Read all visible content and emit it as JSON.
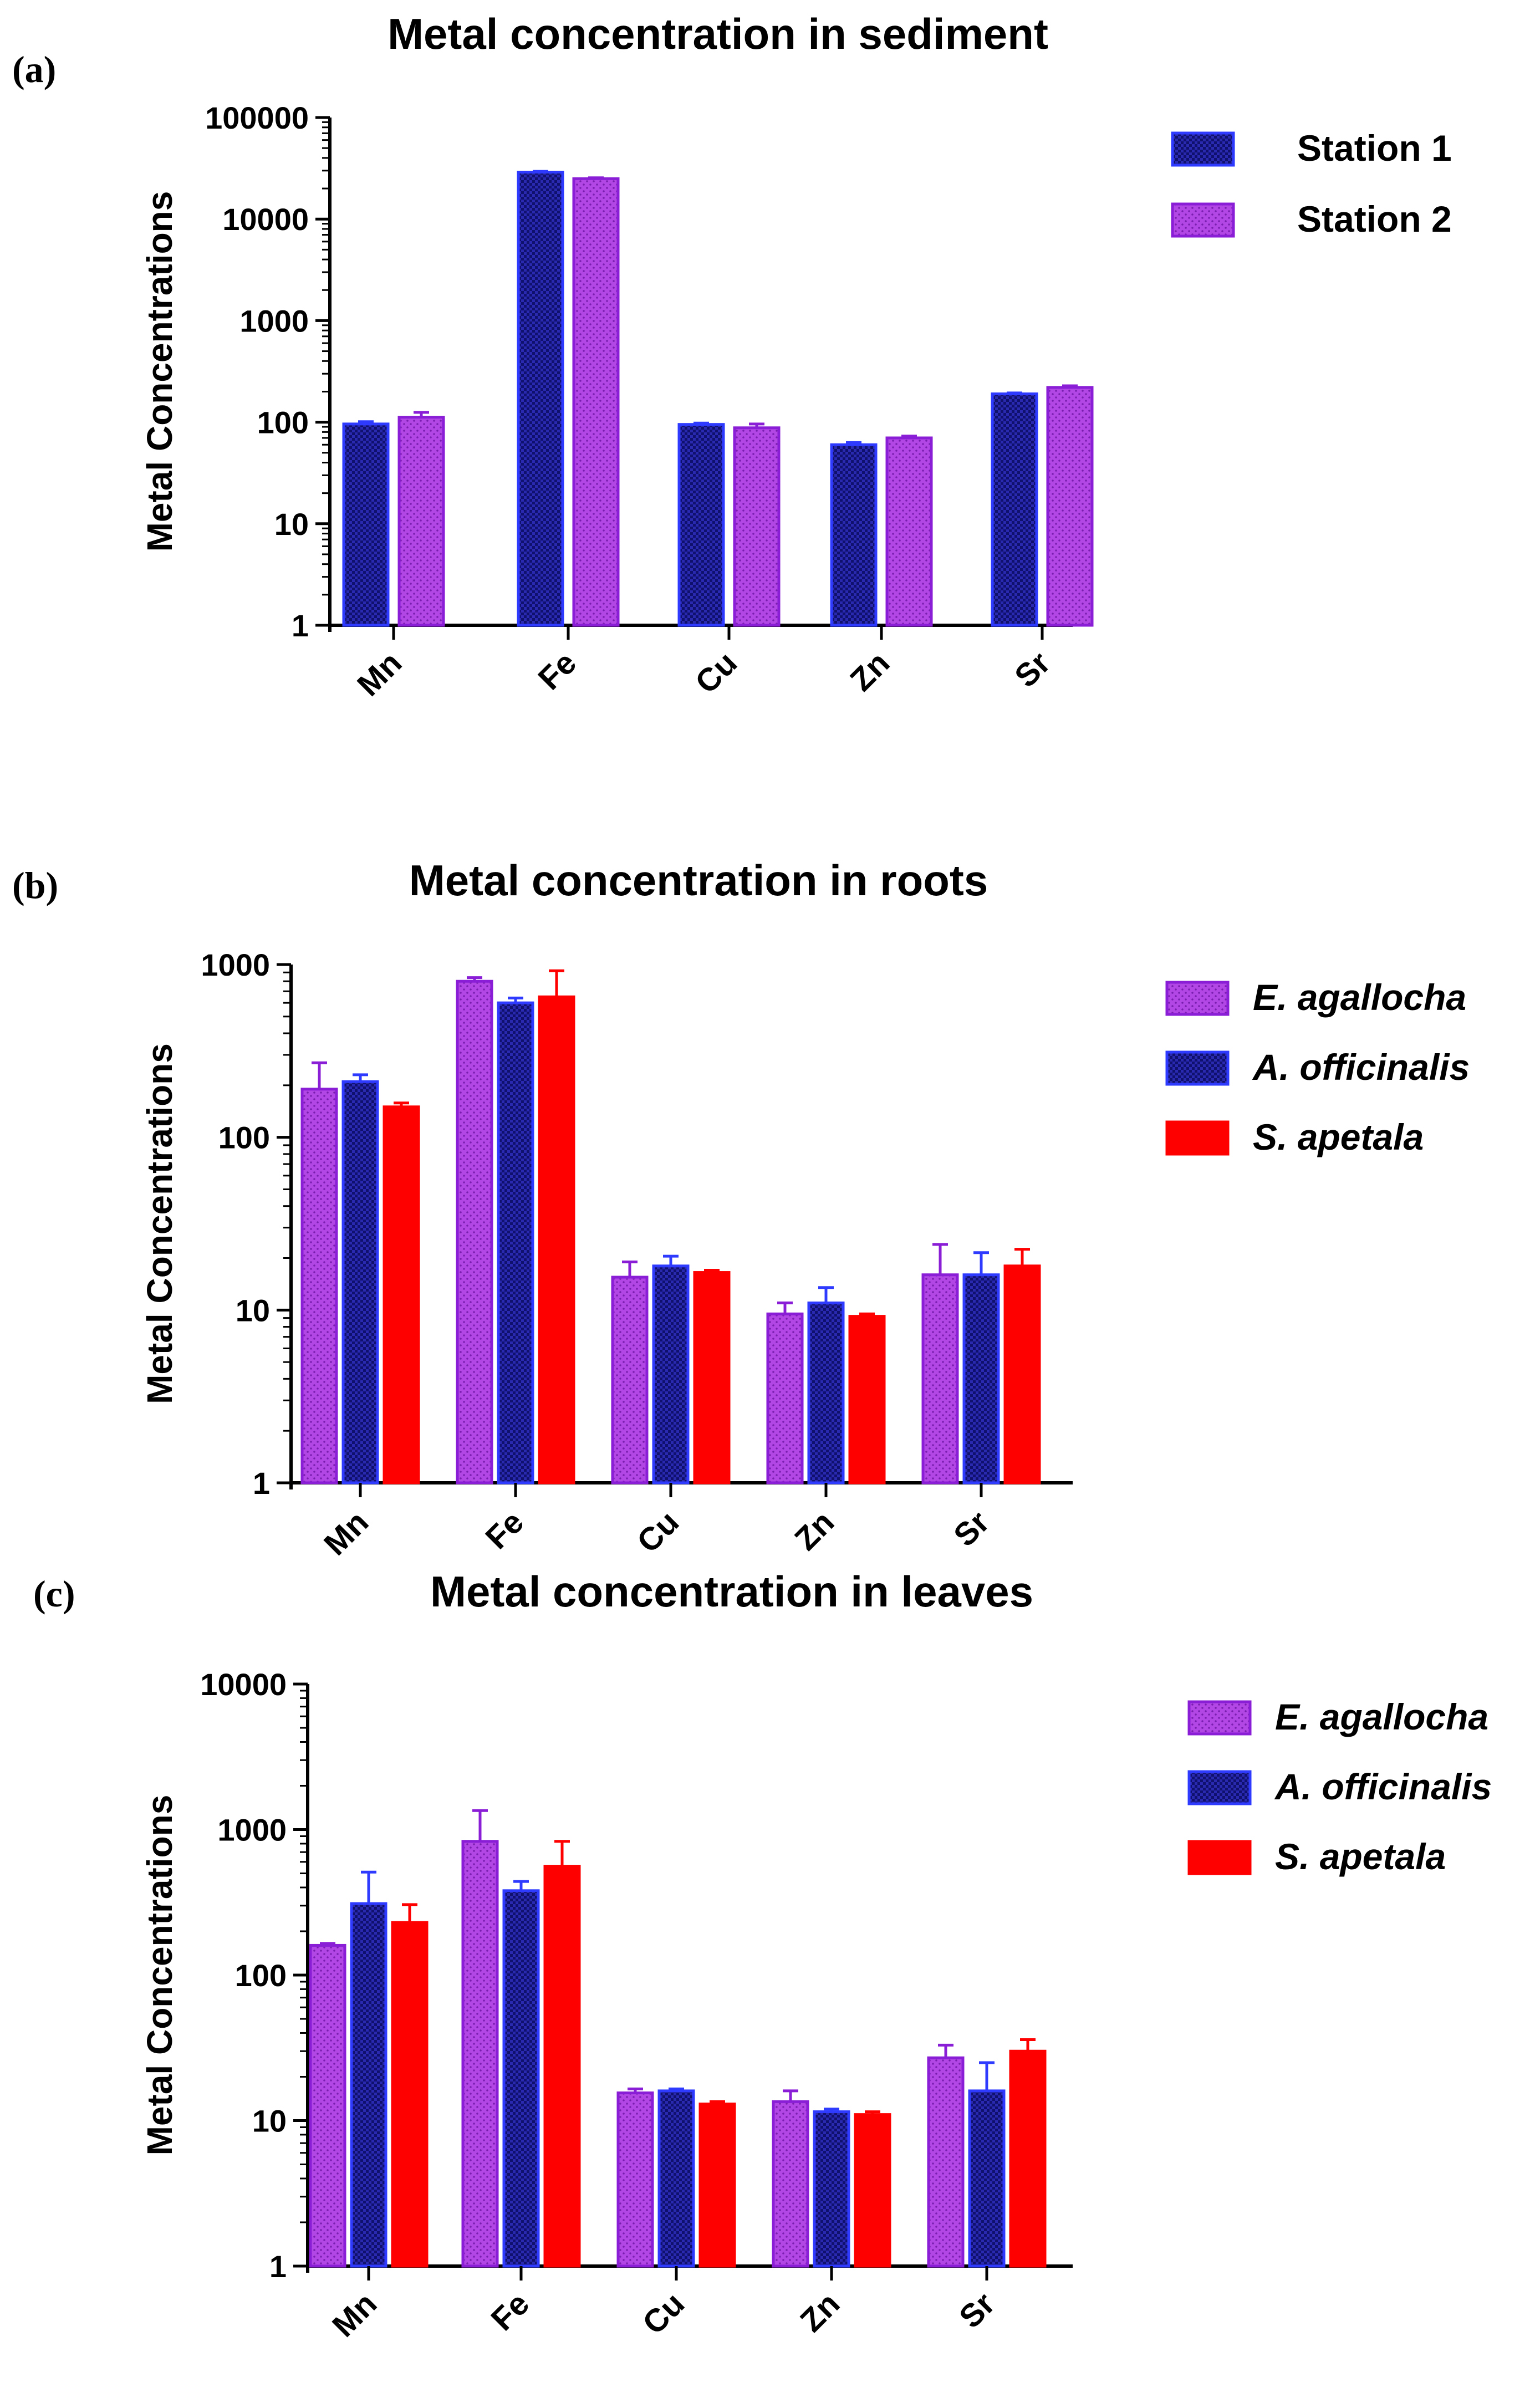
{
  "chart_data": [
    {
      "type": "bar",
      "panel": "(a)",
      "title": "Metal concentration in sediment",
      "xlabel": "",
      "ylabel": "Metal Concentrations",
      "yscale": "log",
      "ylim": [
        1,
        100000
      ],
      "yticks": [
        1,
        10,
        100,
        1000,
        10000,
        100000
      ],
      "ytick_labels": [
        "1",
        "10",
        "100",
        "1000",
        "10000",
        "100000"
      ],
      "categories": [
        "Mn",
        "Fe",
        "Cu",
        "Zn",
        "Sr"
      ],
      "legend_position": "top-right",
      "series": [
        {
          "name": "Station 1",
          "italic": false,
          "pattern": "checker",
          "fill": "#12127a",
          "stroke": "#2e3bff",
          "values": [
            96,
            29000,
            95,
            60,
            190
          ],
          "errors": [
            101,
            29500,
            98,
            63,
            194
          ]
        },
        {
          "name": "Station 2",
          "italic": false,
          "pattern": "dots",
          "fill": "#b040e0",
          "stroke": "#8a1ed6",
          "values": [
            112,
            25000,
            88,
            70,
            220
          ],
          "errors": [
            125,
            25500,
            96,
            73,
            228
          ]
        }
      ]
    },
    {
      "type": "bar",
      "panel": "(b)",
      "title": "Metal concentration in roots",
      "xlabel": "",
      "ylabel": "Metal Concentrations",
      "yscale": "log",
      "ylim": [
        1,
        1000
      ],
      "yticks": [
        1,
        10,
        100,
        1000
      ],
      "ytick_labels": [
        "1",
        "10",
        "100",
        "1000"
      ],
      "categories": [
        "Mn",
        "Fe",
        "Cu",
        "Zn",
        "Sr"
      ],
      "legend_position": "top-right",
      "series": [
        {
          "name": "E. agallocha",
          "italic": true,
          "pattern": "dots",
          "fill": "#b040e0",
          "stroke": "#8a1ed6",
          "values": [
            190,
            800,
            15.5,
            9.5,
            16
          ],
          "errors": [
            270,
            840,
            19,
            11,
            24
          ]
        },
        {
          "name": " A. officinalis",
          "italic": true,
          "pattern": "checker",
          "fill": "#12127a",
          "stroke": "#2e3bff",
          "values": [
            210,
            600,
            18,
            11,
            16
          ],
          "errors": [
            230,
            640,
            20.5,
            13.5,
            21.5
          ]
        },
        {
          "name": "S. apetala",
          "italic": true,
          "pattern": "solid",
          "fill": "#ff0000",
          "stroke": "#ff0000",
          "values": [
            150,
            650,
            16.5,
            9.2,
            18
          ],
          "errors": [
            158,
            920,
            17,
            9.5,
            22.5
          ]
        }
      ]
    },
    {
      "type": "bar",
      "panel": "(c)",
      "title": "Metal concentration in leaves",
      "xlabel": "",
      "ylabel": "Metal Concentrations",
      "yscale": "log",
      "ylim": [
        1,
        10000
      ],
      "yticks": [
        1,
        10,
        100,
        1000,
        10000
      ],
      "ytick_labels": [
        "1",
        "10",
        "100",
        "1000",
        "10000"
      ],
      "categories": [
        "Mn",
        "Fe",
        "Cu",
        "Zn",
        "Sr"
      ],
      "legend_position": "top-right",
      "series": [
        {
          "name": "E. agallocha",
          "italic": true,
          "pattern": "dots",
          "fill": "#b040e0",
          "stroke": "#8a1ed6",
          "values": [
            160,
            830,
            15.5,
            13.5,
            27
          ],
          "errors": [
            165,
            1350,
            16.5,
            16,
            33
          ]
        },
        {
          "name": " A. officinalis",
          "italic": true,
          "pattern": "checker",
          "fill": "#12127a",
          "stroke": "#2e3bff",
          "values": [
            310,
            380,
            16,
            11.5,
            16
          ],
          "errors": [
            510,
            440,
            16.5,
            12,
            25
          ]
        },
        {
          "name": "S. apetala",
          "italic": true,
          "pattern": "solid",
          "fill": "#ff0000",
          "stroke": "#ff0000",
          "values": [
            230,
            560,
            13,
            11,
            30
          ],
          "errors": [
            305,
            830,
            13.5,
            11.5,
            36
          ]
        }
      ]
    }
  ]
}
